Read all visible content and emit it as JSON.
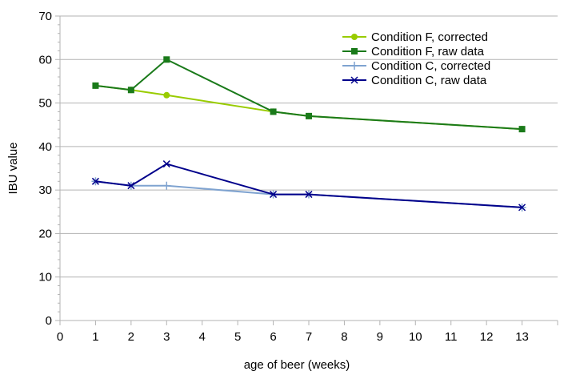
{
  "chart_data": {
    "type": "line",
    "title": "",
    "xlabel": "age of beer (weeks)",
    "ylabel": "IBU value",
    "xlim": [
      0,
      14
    ],
    "ylim": [
      0,
      70
    ],
    "x_ticks": [
      0,
      1,
      2,
      3,
      4,
      5,
      6,
      7,
      8,
      9,
      10,
      11,
      12,
      13
    ],
    "y_ticks": [
      0,
      10,
      20,
      30,
      40,
      50,
      60,
      70
    ],
    "grid": "horizontal",
    "legend_position": "top-right",
    "series": [
      {
        "name": "Condition F, corrected",
        "color": "#99cc00",
        "marker": "circle",
        "x": [
          1,
          2,
          3,
          6,
          7,
          13
        ],
        "values": [
          54,
          53,
          51.8,
          48,
          47,
          44
        ]
      },
      {
        "name": "Condition F, raw data",
        "color": "#1a7a1a",
        "marker": "square",
        "x": [
          1,
          2,
          3,
          6,
          7,
          13
        ],
        "values": [
          54,
          53,
          60,
          48,
          47,
          44
        ]
      },
      {
        "name": "Condition C, corrected",
        "color": "#7fa3d0",
        "marker": "plus",
        "x": [
          1,
          2,
          3,
          6,
          7,
          13
        ],
        "values": [
          32,
          31,
          31,
          29,
          29,
          26
        ]
      },
      {
        "name": "Condition C, raw data",
        "color": "#00008b",
        "marker": "x",
        "x": [
          1,
          2,
          3,
          6,
          7,
          13
        ],
        "values": [
          32,
          31,
          36,
          29,
          29,
          26
        ]
      }
    ]
  }
}
